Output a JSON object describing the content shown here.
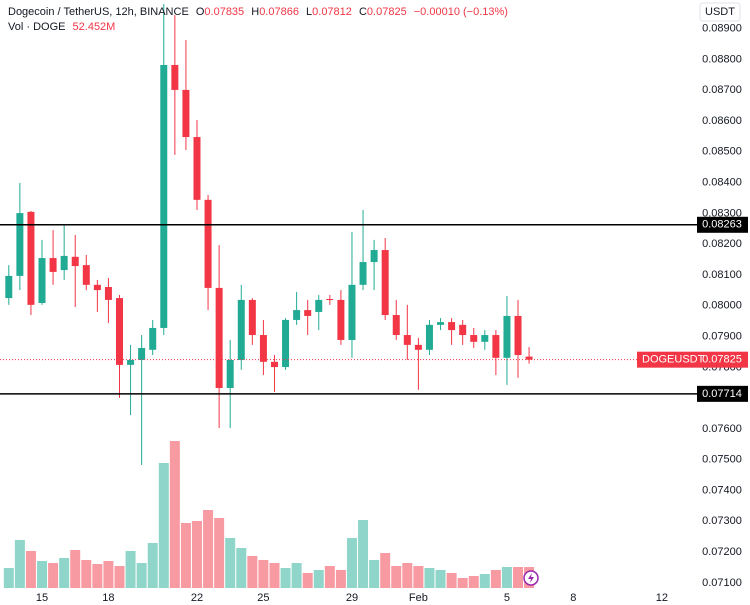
{
  "chart_data": {
    "type": "candlestick",
    "header": {
      "symbol": "Dogecoin / TetherUS, 12h, BINANCE",
      "open_label": "O",
      "high_label": "H",
      "low_label": "L",
      "close_label": "C",
      "change": "−0.00010 (−0.13%)"
    },
    "currency": "USDT",
    "ticker": "DOGEUSDT",
    "categories": [
      null,
      null,
      null,
      "15",
      null,
      null,
      null,
      null,
      null,
      "18",
      null,
      null,
      null,
      null,
      null,
      null,
      null,
      "22",
      null,
      null,
      null,
      null,
      null,
      "25",
      null,
      null,
      null,
      null,
      null,
      null,
      null,
      "29",
      null,
      null,
      null,
      null,
      null,
      "Feb",
      null,
      null,
      null,
      null,
      null,
      null,
      null,
      "5",
      null,
      null,
      null,
      null,
      null,
      "8",
      null,
      null,
      null,
      null,
      null,
      null,
      null,
      "12",
      null,
      null
    ],
    "open": [
      0.08025,
      0.08097,
      0.08305,
      0.08009,
      0.08155,
      0.08116,
      0.08159,
      0.08132,
      0.08068,
      0.08061,
      0.08025,
      0.07808,
      0.07824,
      0.07857,
      0.07928,
      0.08782,
      0.08701,
      0.08548,
      0.08344,
      0.08058,
      0.07733,
      0.07824,
      0.08019,
      0.07905,
      0.07818,
      0.07801,
      0.07954,
      0.07986,
      0.0798,
      0.08022,
      0.08019,
      0.07889,
      0.08068,
      0.08142,
      0.08181,
      0.0797,
      0.07905,
      0.07873,
      0.07857,
      0.07938,
      0.07947,
      0.07938,
      0.07905,
      0.07883,
      0.07905,
      0.07831,
      0.07967,
      0.07835,
      null,
      null,
      null,
      null,
      null,
      null,
      null,
      null,
      null,
      null,
      null,
      null,
      null,
      null
    ],
    "high": [
      0.08132,
      0.08399,
      0.08308,
      0.08214,
      0.08246,
      0.08262,
      0.0823,
      0.08165,
      0.08084,
      0.0809,
      0.08035,
      0.07873,
      0.07905,
      0.07954,
      0.0898,
      0.08944,
      0.08863,
      0.08603,
      0.0836,
      0.08197,
      0.07889,
      0.08068,
      0.08025,
      0.07954,
      0.0784,
      0.0796,
      0.08045,
      0.08019,
      0.08035,
      0.08035,
      0.08051,
      0.0824,
      0.08311,
      0.08214,
      0.0822,
      0.08019,
      0.08003,
      0.07896,
      0.07954,
      0.0796,
      0.0796,
      0.07954,
      0.07928,
      0.07921,
      0.07921,
      0.08032,
      0.08019,
      0.07866,
      null,
      null,
      null,
      null,
      null,
      null,
      null,
      null,
      null,
      null,
      null,
      null,
      null,
      null
    ],
    "low": [
      0.08003,
      0.08051,
      0.0797,
      0.08003,
      0.08068,
      0.08084,
      0.07996,
      0.08051,
      0.0798,
      0.07944,
      0.07701,
      0.07645,
      0.07483,
      0.0784,
      0.07905,
      0.0849,
      0.08506,
      0.08311,
      0.07986,
      0.07603,
      0.07603,
      0.07792,
      0.07873,
      0.07775,
      0.0772,
      0.07792,
      0.07938,
      0.07905,
      0.07921,
      0.08003,
      0.07873,
      0.07831,
      0.08051,
      0.08051,
      0.07954,
      0.07889,
      0.07824,
      0.07727,
      0.0784,
      0.07921,
      0.07873,
      0.07873,
      0.07863,
      0.07857,
      0.07775,
      0.07743,
      0.07766,
      0.07812,
      null,
      null,
      null,
      null,
      null,
      null,
      null,
      null,
      null,
      null,
      null,
      null,
      null,
      null
    ],
    "close": [
      0.08097,
      0.08301,
      0.08003,
      0.08155,
      0.0811,
      0.08162,
      0.08129,
      0.08068,
      0.08051,
      0.08019,
      0.07808,
      0.07824,
      0.07863,
      0.07928,
      0.08782,
      0.08701,
      0.08548,
      0.08344,
      0.08058,
      0.07733,
      0.07824,
      0.08019,
      0.07905,
      0.07818,
      0.07801,
      0.07954,
      0.07986,
      0.07967,
      0.08019,
      0.08019,
      0.07889,
      0.08068,
      0.08142,
      0.08181,
      0.0797,
      0.07905,
      0.07873,
      0.07857,
      0.07938,
      0.07947,
      0.07921,
      0.07905,
      0.07883,
      0.07905,
      0.07831,
      0.07967,
      0.0784,
      0.07825,
      null,
      null,
      null,
      null,
      null,
      null,
      null,
      null,
      null,
      null,
      null,
      null,
      null,
      null
    ],
    "volume": {
      "name": "Vol · DOGE",
      "values": [
        50,
        120,
        92.5,
        67.5,
        62.5,
        75,
        95,
        70,
        60,
        67.5,
        55,
        92.5,
        62.5,
        112.5,
        312.5,
        367.5,
        162.5,
        167.5,
        195,
        175,
        125,
        100,
        80,
        70,
        62.5,
        50,
        62.5,
        37.5,
        45,
        55,
        45,
        125,
        170,
        70,
        87.5,
        55,
        62.5,
        55,
        50,
        45,
        37.5,
        25,
        30,
        35,
        45,
        52.5,
        52.5,
        52.452,
        null,
        null,
        null,
        null,
        null,
        null,
        null,
        null,
        null,
        null,
        null,
        null,
        null,
        null
      ],
      "value_labels": [
        null,
        null,
        null,
        null,
        null,
        null,
        null,
        null,
        null,
        null,
        null,
        null,
        null,
        null,
        null,
        null,
        null,
        null,
        null,
        null,
        null,
        null,
        null,
        null,
        null,
        null,
        null,
        null,
        null,
        null,
        null,
        null,
        null,
        null,
        null,
        null,
        null,
        null,
        null,
        null,
        null,
        null,
        null,
        null,
        null,
        null,
        null,
        "52.452M",
        null,
        null,
        null,
        null,
        null,
        null,
        null,
        null,
        null,
        null,
        null,
        null,
        null,
        null
      ]
    },
    "up_color": "#22ab94",
    "down_color": "#f23645",
    "hlines": [
      0.08263,
      0.07714
    ],
    "ylim": [
      0.07077,
      0.08993
    ],
    "yticks": [
      {
        "value": 0.071,
        "label": "0.07100"
      },
      {
        "value": 0.072,
        "label": "0.07200"
      },
      {
        "value": 0.073,
        "label": "0.07300"
      },
      {
        "value": 0.074,
        "label": "0.07400"
      },
      {
        "value": 0.075,
        "label": "0.07500"
      },
      {
        "value": 0.076,
        "label": "0.07600"
      },
      {
        "value": 0.077,
        "label": "0.07700"
      },
      {
        "value": 0.078,
        "label": "0.07800"
      },
      {
        "value": 0.079,
        "label": "0.07900"
      },
      {
        "value": 0.08,
        "label": "0.08000"
      },
      {
        "value": 0.081,
        "label": "0.08100"
      },
      {
        "value": 0.082,
        "label": "0.08200"
      },
      {
        "value": 0.083,
        "label": "0.08300"
      },
      {
        "value": 0.084,
        "label": "0.08400"
      },
      {
        "value": 0.085,
        "label": "0.08500"
      },
      {
        "value": 0.086,
        "label": "0.08600"
      },
      {
        "value": 0.087,
        "label": "0.08700"
      },
      {
        "value": 0.088,
        "label": "0.08800"
      },
      {
        "value": 0.089,
        "label": "0.08900"
      }
    ],
    "grid": false
  }
}
